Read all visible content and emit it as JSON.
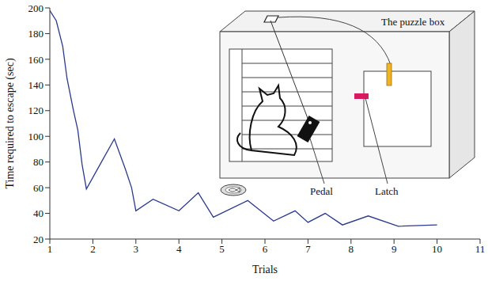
{
  "chart_data": {
    "type": "line",
    "x_label": "Trials",
    "y_label": "Time required to escape (sec)",
    "x": [
      1,
      1.15,
      1.3,
      1.4,
      1.55,
      1.65,
      1.75,
      1.85,
      2.2,
      2.5,
      2.75,
      2.9,
      3,
      3.4,
      4,
      4.45,
      4.8,
      5.6,
      6.2,
      6.7,
      7,
      7.4,
      7.8,
      8.4,
      9.1,
      10
    ],
    "values": [
      198,
      190,
      170,
      145,
      120,
      105,
      78,
      59,
      80,
      98,
      75,
      60,
      42,
      51,
      42,
      56,
      37,
      50,
      34,
      42,
      33,
      40,
      31,
      38,
      30,
      31
    ],
    "color": "#2b3a8c",
    "xlim": [
      1,
      11
    ],
    "xticks": [
      1,
      2,
      3,
      4,
      5,
      6,
      7,
      8,
      9,
      10,
      11
    ],
    "ylim": [
      20,
      200
    ],
    "yticks": [
      20,
      40,
      60,
      80,
      100,
      120,
      140,
      160,
      180,
      200
    ],
    "grid": false,
    "annotations": {
      "box": "The puzzle box",
      "pedal": "Pedal",
      "latch": "Latch"
    }
  }
}
